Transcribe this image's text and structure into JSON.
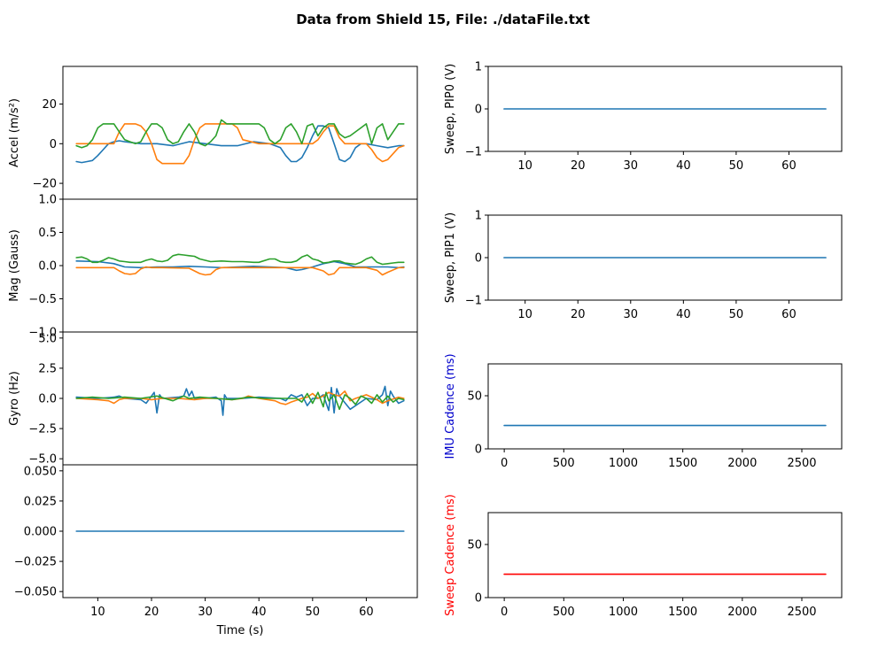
{
  "figure_title": "Data from Shield 15, File: ./dataFile.txt",
  "colors": {
    "c0": "#1f77b4",
    "c1": "#ff7f0e",
    "c2": "#2ca02c",
    "red": "#ff0000",
    "blue": "#0000cc"
  },
  "chart_data": [
    {
      "id": "accel",
      "type": "line",
      "ylabel": "Accel (m/s²)",
      "xlim": [
        3.5,
        69.5
      ],
      "ylim": [
        -28,
        39
      ],
      "yticks": [
        -20,
        0,
        20
      ],
      "ytick_labels": [
        "−20",
        "0",
        "20"
      ],
      "xticks": [],
      "xtick_labels": [],
      "series": [
        {
          "color_key": "c0",
          "x": [
            6,
            7,
            8,
            9,
            10,
            11,
            12,
            13,
            14,
            15,
            18,
            21,
            24,
            27,
            30,
            33,
            36,
            39,
            42,
            44,
            45,
            46,
            47,
            48,
            49,
            50,
            51,
            52,
            53,
            54,
            55,
            56,
            57,
            58,
            59,
            60,
            62,
            64,
            66,
            67
          ],
          "y": [
            -9,
            -9.5,
            -9,
            -8.5,
            -6,
            -3,
            0,
            1,
            1.5,
            1,
            0,
            0,
            -1,
            1,
            0,
            -1,
            -1,
            1,
            0,
            -2,
            -6,
            -9,
            -9,
            -7,
            -2,
            4,
            9,
            9,
            8,
            0,
            -8,
            -9,
            -7,
            -2,
            0,
            0,
            -1,
            -2,
            -1,
            -1
          ]
        },
        {
          "color_key": "c1",
          "x": [
            6,
            10,
            13,
            14,
            15,
            16,
            17,
            18,
            19,
            20,
            21,
            22,
            24,
            26,
            27,
            28,
            29,
            30,
            33,
            35,
            36,
            37,
            40,
            45,
            50,
            51,
            52,
            53,
            54,
            55,
            56,
            60,
            61,
            62,
            63,
            64,
            66,
            67
          ],
          "y": [
            0,
            0,
            0,
            6,
            10,
            10,
            10,
            9,
            6,
            0,
            -8,
            -10,
            -10,
            -10,
            -6,
            2,
            8,
            10,
            10,
            10,
            8,
            2,
            0,
            0,
            0,
            2,
            6,
            9,
            9,
            3,
            0,
            0,
            -3,
            -7,
            -9,
            -8,
            -2,
            -1
          ]
        },
        {
          "color_key": "c2",
          "x": [
            6,
            7,
            8,
            9,
            10,
            11,
            12,
            13,
            14,
            15,
            16,
            17,
            18,
            19,
            20,
            21,
            22,
            23,
            24,
            25,
            26,
            27,
            28,
            29,
            30,
            31,
            32,
            33,
            34,
            35,
            36,
            37,
            38,
            39,
            40,
            41,
            42,
            43,
            44,
            45,
            46,
            47,
            48,
            49,
            50,
            51,
            52,
            53,
            54,
            55,
            56,
            57,
            58,
            59,
            60,
            61,
            62,
            63,
            64,
            65,
            66,
            67
          ],
          "y": [
            -1,
            -2,
            -1,
            2,
            8,
            10,
            10,
            10,
            6,
            2,
            1,
            0,
            1,
            6,
            10,
            10,
            8,
            2,
            0,
            1,
            6,
            10,
            6,
            0,
            -1,
            1,
            4,
            12,
            10,
            10,
            10,
            10,
            10,
            10,
            10,
            8,
            2,
            0,
            2,
            8,
            10,
            6,
            0,
            9,
            10,
            4,
            8,
            10,
            10,
            5,
            3,
            4,
            6,
            8,
            10,
            0,
            8,
            10,
            2,
            6,
            10,
            10
          ]
        }
      ]
    },
    {
      "id": "mag",
      "type": "line",
      "ylabel": "Mag (Gauss)",
      "xlim": [
        3.5,
        69.5
      ],
      "ylim": [
        -1.0,
        1.0
      ],
      "yticks": [
        -1.0,
        -0.5,
        0.0,
        0.5,
        1.0
      ],
      "ytick_labels": [
        "−1.0",
        "−0.5",
        "0.0",
        "0.5",
        "1.0"
      ],
      "xticks": [],
      "xtick_labels": [],
      "series": [
        {
          "color_key": "c0",
          "x": [
            6,
            10,
            13,
            15,
            18,
            21,
            24,
            27,
            30,
            33,
            36,
            39,
            42,
            45,
            47,
            48,
            50,
            52,
            54,
            56,
            58,
            60,
            62,
            64,
            66,
            67
          ],
          "y": [
            0.07,
            0.06,
            0.03,
            -0.02,
            -0.03,
            -0.02,
            -0.02,
            -0.01,
            -0.02,
            -0.03,
            -0.02,
            -0.01,
            -0.02,
            -0.03,
            -0.07,
            -0.06,
            -0.02,
            0.03,
            0.06,
            0.03,
            -0.02,
            -0.02,
            -0.02,
            -0.02,
            -0.03,
            -0.02
          ]
        },
        {
          "color_key": "c1",
          "x": [
            6,
            10,
            13,
            14,
            15,
            16,
            17,
            18,
            19,
            20,
            21,
            22,
            27,
            28,
            29,
            30,
            31,
            32,
            33,
            36,
            40,
            45,
            50,
            52,
            53,
            54,
            55,
            56,
            58,
            60,
            62,
            63,
            64,
            66,
            67
          ],
          "y": [
            -0.03,
            -0.03,
            -0.03,
            -0.08,
            -0.12,
            -0.13,
            -0.12,
            -0.05,
            -0.02,
            -0.03,
            -0.03,
            -0.03,
            -0.04,
            -0.08,
            -0.12,
            -0.14,
            -0.13,
            -0.06,
            -0.03,
            -0.03,
            -0.03,
            -0.03,
            -0.03,
            -0.08,
            -0.14,
            -0.12,
            -0.03,
            -0.03,
            -0.03,
            -0.03,
            -0.07,
            -0.14,
            -0.1,
            -0.03,
            -0.03
          ]
        },
        {
          "color_key": "c2",
          "x": [
            6,
            7,
            8,
            9,
            10,
            11,
            12,
            13,
            14,
            15,
            16,
            17,
            18,
            19,
            20,
            21,
            22,
            23,
            24,
            25,
            26,
            27,
            28,
            29,
            30,
            31,
            33,
            35,
            37,
            39,
            40,
            42,
            43,
            44,
            45,
            46,
            47,
            48,
            49,
            50,
            51,
            52,
            53,
            54,
            55,
            56,
            57,
            58,
            59,
            60,
            61,
            62,
            63,
            64,
            65,
            66,
            67
          ],
          "y": [
            0.12,
            0.13,
            0.1,
            0.05,
            0.05,
            0.08,
            0.12,
            0.1,
            0.07,
            0.06,
            0.05,
            0.05,
            0.05,
            0.08,
            0.1,
            0.07,
            0.06,
            0.08,
            0.15,
            0.17,
            0.16,
            0.15,
            0.14,
            0.1,
            0.08,
            0.06,
            0.07,
            0.06,
            0.06,
            0.05,
            0.05,
            0.1,
            0.1,
            0.06,
            0.05,
            0.05,
            0.07,
            0.13,
            0.16,
            0.1,
            0.08,
            0.04,
            0.05,
            0.07,
            0.07,
            0.04,
            0.03,
            0.02,
            0.05,
            0.1,
            0.13,
            0.05,
            0.02,
            0.03,
            0.04,
            0.05,
            0.05
          ]
        }
      ]
    },
    {
      "id": "gyro",
      "type": "line",
      "ylabel": "Gyro (Hz)",
      "xlim": [
        3.5,
        69.5
      ],
      "ylim": [
        -5.5,
        5.5
      ],
      "yticks": [
        -5.0,
        -2.5,
        0.0,
        2.5,
        5.0
      ],
      "ytick_labels": [
        "−5.0",
        "−2.5",
        "0.0",
        "2.5",
        "5.0"
      ],
      "xticks": [],
      "xtick_labels": [],
      "series": [
        {
          "color_key": "c0",
          "x": [
            6,
            10,
            13,
            14,
            15,
            18,
            19,
            20,
            20.5,
            21,
            21.5,
            22,
            25,
            26,
            26.5,
            27,
            27.5,
            28,
            30,
            32,
            33,
            33.3,
            33.6,
            34,
            37,
            40,
            44,
            45,
            46,
            47,
            48,
            49,
            50,
            51,
            52,
            53,
            53.5,
            54,
            54.5,
            55,
            57,
            60,
            62,
            63,
            63.5,
            64,
            64.5,
            65,
            66,
            67
          ],
          "y": [
            0.1,
            0.0,
            0.1,
            0.2,
            0.0,
            -0.1,
            -0.4,
            0.2,
            0.5,
            -1.2,
            0.3,
            0.0,
            0.1,
            0.2,
            0.8,
            0.2,
            0.6,
            0.0,
            0.0,
            0.1,
            -0.2,
            -1.4,
            0.3,
            0.0,
            0.0,
            0.1,
            0.0,
            -0.2,
            0.3,
            0.1,
            0.3,
            -0.6,
            0.0,
            0.0,
            0.3,
            -1.0,
            0.9,
            -1.2,
            0.8,
            0.2,
            -0.9,
            0.0,
            -0.1,
            0.3,
            1.0,
            -0.6,
            0.6,
            0.2,
            -0.4,
            -0.2
          ]
        },
        {
          "color_key": "c1",
          "x": [
            6,
            10,
            12,
            13,
            14,
            15,
            18,
            20,
            22,
            25,
            28,
            30,
            32,
            35,
            37,
            38,
            40,
            43,
            44,
            45,
            46,
            48,
            49,
            50,
            51,
            52,
            53,
            54,
            55,
            56,
            57,
            58,
            60,
            62,
            63,
            64,
            66,
            67
          ],
          "y": [
            0.0,
            -0.1,
            -0.2,
            -0.4,
            -0.1,
            0.0,
            0.0,
            -0.1,
            0.0,
            0.0,
            -0.1,
            0.0,
            0.0,
            -0.1,
            0.0,
            0.2,
            0.0,
            -0.2,
            -0.4,
            -0.5,
            -0.3,
            0.0,
            0.1,
            0.4,
            0.0,
            0.2,
            0.5,
            0.3,
            0.2,
            0.6,
            -0.2,
            0.0,
            0.3,
            -0.1,
            -0.4,
            -0.2,
            0.1,
            0.0
          ]
        },
        {
          "color_key": "c2",
          "x": [
            6,
            9,
            12,
            15,
            18,
            21,
            24,
            26,
            27,
            29,
            32,
            35,
            38,
            41,
            44,
            47,
            48,
            49,
            50,
            51,
            52,
            52.5,
            53,
            54,
            55,
            56,
            57,
            58,
            59,
            60,
            61,
            62,
            63,
            64,
            65,
            66,
            67
          ],
          "y": [
            0.0,
            0.1,
            0.0,
            0.1,
            0.0,
            0.2,
            -0.2,
            0.2,
            0.0,
            0.1,
            0.0,
            -0.1,
            0.1,
            0.0,
            0.0,
            0.0,
            -0.3,
            0.4,
            -0.4,
            0.5,
            -0.7,
            0.5,
            -0.2,
            0.3,
            -0.9,
            0.3,
            0.0,
            -0.5,
            0.2,
            0.0,
            -0.4,
            0.3,
            -0.3,
            0.2,
            -0.3,
            0.0,
            -0.1
          ]
        }
      ]
    },
    {
      "id": "flat",
      "type": "line",
      "ylabel": "",
      "xlabel": "Time (s)",
      "xlim": [
        3.5,
        69.5
      ],
      "ylim": [
        -0.055,
        0.055
      ],
      "yticks": [
        -0.05,
        -0.025,
        0.0,
        0.025,
        0.05
      ],
      "ytick_labels": [
        "−0.050",
        "−0.025",
        "0.000",
        "0.025",
        "0.050"
      ],
      "xticks": [
        10,
        20,
        30,
        40,
        50,
        60
      ],
      "xtick_labels": [
        "10",
        "20",
        "30",
        "40",
        "50",
        "60"
      ],
      "series": [
        {
          "color_key": "c0",
          "x": [
            6,
            67
          ],
          "y": [
            0,
            0
          ]
        }
      ]
    },
    {
      "id": "pip0",
      "type": "line",
      "ylabel": "Sweep, PIP0 (V)",
      "xlim": [
        3,
        70
      ],
      "ylim": [
        -1,
        1
      ],
      "yticks": [
        -1,
        0,
        1
      ],
      "ytick_labels": [
        "−1",
        "0",
        "1"
      ],
      "xticks": [
        10,
        20,
        30,
        40,
        50,
        60
      ],
      "xtick_labels": [
        "10",
        "20",
        "30",
        "40",
        "50",
        "60"
      ],
      "series": [
        {
          "color_key": "c0",
          "x": [
            6,
            67
          ],
          "y": [
            0,
            0
          ]
        }
      ]
    },
    {
      "id": "pip1",
      "type": "line",
      "ylabel": "Sweep, PIP1 (V)",
      "xlim": [
        3,
        70
      ],
      "ylim": [
        -1,
        1
      ],
      "yticks": [
        -1,
        0,
        1
      ],
      "ytick_labels": [
        "−1",
        "0",
        "1"
      ],
      "xticks": [
        10,
        20,
        30,
        40,
        50,
        60
      ],
      "xtick_labels": [
        "10",
        "20",
        "30",
        "40",
        "50",
        "60"
      ],
      "series": [
        {
          "color_key": "c0",
          "x": [
            6,
            67
          ],
          "y": [
            0,
            0
          ]
        }
      ]
    },
    {
      "id": "imu_cadence",
      "type": "line",
      "ylabel": "IMU Cadence (ms)",
      "ylabel_color_key": "blue",
      "xlim": [
        -135,
        2835
      ],
      "ylim": [
        0,
        80
      ],
      "yticks": [
        0,
        50
      ],
      "ytick_labels": [
        "0",
        "50"
      ],
      "xticks": [
        0,
        500,
        1000,
        1500,
        2000,
        2500
      ],
      "xtick_labels": [
        "0",
        "500",
        "1000",
        "1500",
        "2000",
        "2500"
      ],
      "series": [
        {
          "color_key": "c0",
          "x": [
            0,
            2700
          ],
          "y": [
            22,
            22
          ]
        }
      ]
    },
    {
      "id": "sweep_cadence",
      "type": "line",
      "ylabel": "Sweep Cadence (ms)",
      "ylabel_color_key": "red",
      "xlim": [
        -135,
        2835
      ],
      "ylim": [
        0,
        80
      ],
      "yticks": [
        0,
        50
      ],
      "ytick_labels": [
        "0",
        "50"
      ],
      "xticks": [
        0,
        500,
        1000,
        1500,
        2000,
        2500
      ],
      "xtick_labels": [
        "0",
        "500",
        "1000",
        "1500",
        "2000",
        "2500"
      ],
      "series": [
        {
          "color_key": "red",
          "x": [
            0,
            2700
          ],
          "y": [
            22,
            22
          ]
        }
      ]
    }
  ]
}
